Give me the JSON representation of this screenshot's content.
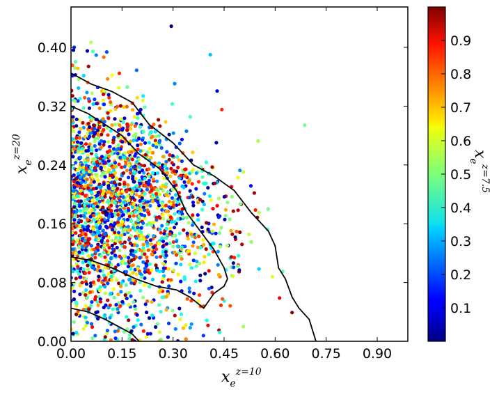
{
  "chart_data": {
    "type": "scatter",
    "title": "",
    "xlabel": {
      "base": "x",
      "sub": "e",
      "sup": "z=10"
    },
    "ylabel": {
      "base": "x",
      "sub": "e",
      "sup": "z=20"
    },
    "colorbar_label": {
      "base": "x",
      "sub": "e",
      "sup": "z=7.5"
    },
    "xlim": [
      0.0,
      0.99
    ],
    "ylim": [
      0.0,
      0.455
    ],
    "xticks": [
      "0.00",
      "0.15",
      "0.30",
      "0.45",
      "0.60",
      "0.75",
      "0.90"
    ],
    "yticks": [
      "0.00",
      "0.08",
      "0.16",
      "0.24",
      "0.32",
      "0.40"
    ],
    "colorbar_ticks": [
      "0.1",
      "0.2",
      "0.3",
      "0.4",
      "0.5",
      "0.6",
      "0.7",
      "0.8",
      "0.9"
    ],
    "colorbar_range": [
      0.0,
      1.0
    ],
    "colormap": "jet",
    "grid": false,
    "legend": "none",
    "point_count": 2200,
    "point_color_min": "#00007f",
    "point_color_max": "#7f0000",
    "contour_color": "#000000",
    "contours": [
      {
        "name": "outer",
        "points": [
          [
            0.0,
            0.365
          ],
          [
            0.06,
            0.35
          ],
          [
            0.12,
            0.34
          ],
          [
            0.18,
            0.325
          ],
          [
            0.23,
            0.295
          ],
          [
            0.3,
            0.27
          ],
          [
            0.36,
            0.24
          ],
          [
            0.42,
            0.225
          ],
          [
            0.48,
            0.205
          ],
          [
            0.53,
            0.175
          ],
          [
            0.58,
            0.15
          ],
          [
            0.6,
            0.13
          ],
          [
            0.61,
            0.1
          ],
          [
            0.63,
            0.085
          ],
          [
            0.65,
            0.06
          ],
          [
            0.67,
            0.045
          ],
          [
            0.7,
            0.03
          ],
          [
            0.71,
            0.015
          ],
          [
            0.72,
            0.0
          ]
        ]
      },
      {
        "name": "inner",
        "points": [
          [
            0.0,
            0.32
          ],
          [
            0.05,
            0.31
          ],
          [
            0.1,
            0.295
          ],
          [
            0.15,
            0.28
          ],
          [
            0.2,
            0.255
          ],
          [
            0.26,
            0.235
          ],
          [
            0.31,
            0.205
          ],
          [
            0.34,
            0.175
          ],
          [
            0.38,
            0.15
          ],
          [
            0.42,
            0.125
          ],
          [
            0.45,
            0.1
          ],
          [
            0.46,
            0.085
          ],
          [
            0.45,
            0.075
          ],
          [
            0.42,
            0.065
          ],
          [
            0.39,
            0.045
          ],
          [
            0.35,
            0.06
          ],
          [
            0.31,
            0.07
          ],
          [
            0.25,
            0.075
          ],
          [
            0.19,
            0.085
          ],
          [
            0.12,
            0.1
          ],
          [
            0.06,
            0.11
          ],
          [
            0.0,
            0.115
          ]
        ]
      },
      {
        "name": "inner-small",
        "points": [
          [
            0.0,
            0.045
          ],
          [
            0.05,
            0.04
          ],
          [
            0.1,
            0.03
          ],
          [
            0.14,
            0.02
          ],
          [
            0.18,
            0.01
          ],
          [
            0.2,
            0.0
          ]
        ]
      }
    ]
  }
}
